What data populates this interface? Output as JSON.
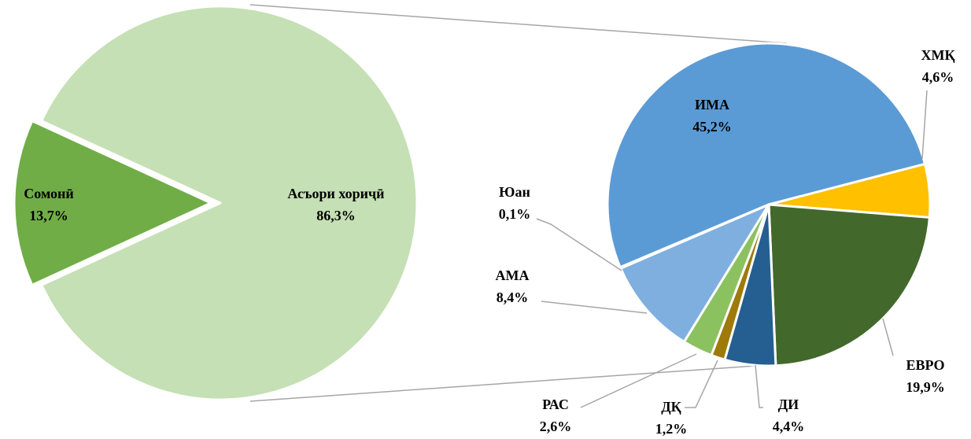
{
  "chart_data": [
    {
      "type": "pie",
      "categories": [
        "Сомонӣ",
        "Асъори хориҷӣ"
      ],
      "values": [
        13.7,
        86.3
      ],
      "value_labels": [
        "13,7%",
        "86,3%"
      ],
      "colors": [
        "#70ad47",
        "#c5e0b4"
      ]
    },
    {
      "type": "pie",
      "categories": [
        "ИМА",
        "ХМҚ",
        "ЕВРО",
        "ДИ",
        "ДҚ",
        "РАС",
        "АМА",
        "Юан"
      ],
      "values": [
        45.2,
        4.6,
        19.9,
        4.4,
        1.2,
        2.6,
        8.4,
        0.1
      ],
      "value_labels": [
        "45,2%",
        "4,6%",
        "19,9%",
        "4,4%",
        "1,2%",
        "2,6%",
        "8,4%",
        "0,1%"
      ],
      "colors": [
        "#5b9bd5",
        "#ffc000",
        "#43682b",
        "#255e91",
        "#9e7a0a",
        "#8cc160",
        "#7eafdf",
        "#a9d18e"
      ]
    }
  ]
}
